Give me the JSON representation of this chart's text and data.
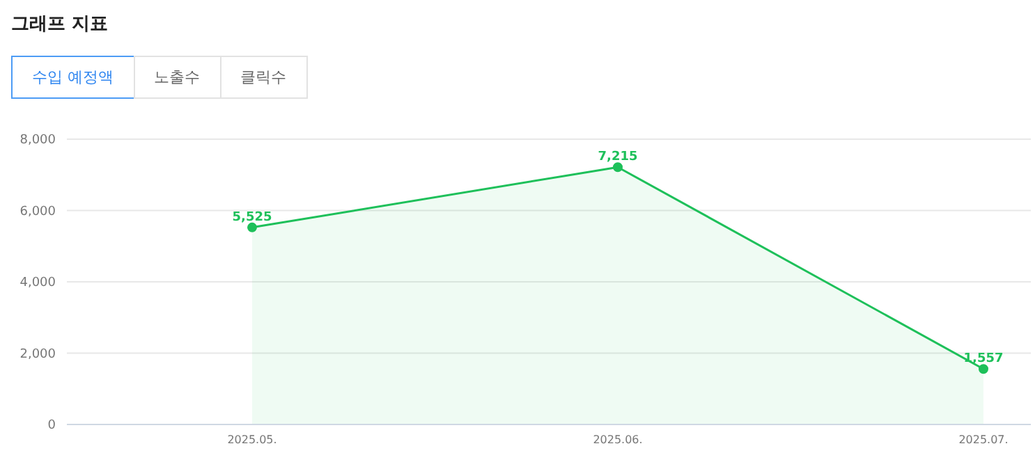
{
  "chart_data": {
    "type": "area",
    "title": "그래프 지표",
    "annotations": [
      "수입 예정액",
      "노출수",
      "클릭수"
    ],
    "categories": [
      "2025.05.",
      "2025.06.",
      "2025.07."
    ],
    "series": [
      {
        "color": "#1ec05a",
        "values": [
          5525,
          7215,
          1557
        ],
        "value_labels": [
          "5,525",
          "7,215",
          "1,557"
        ]
      }
    ],
    "ylim": [
      0,
      8000
    ],
    "yticks": [
      0,
      {
        "value": 2000,
        "label": "2,000"
      },
      {
        "value": 4000,
        "label": "4,000"
      },
      {
        "value": 6000,
        "label": "6,000"
      },
      {
        "value": 8000,
        "label": "8,000"
      }
    ],
    "grid": "y",
    "marker": "circle"
  }
}
